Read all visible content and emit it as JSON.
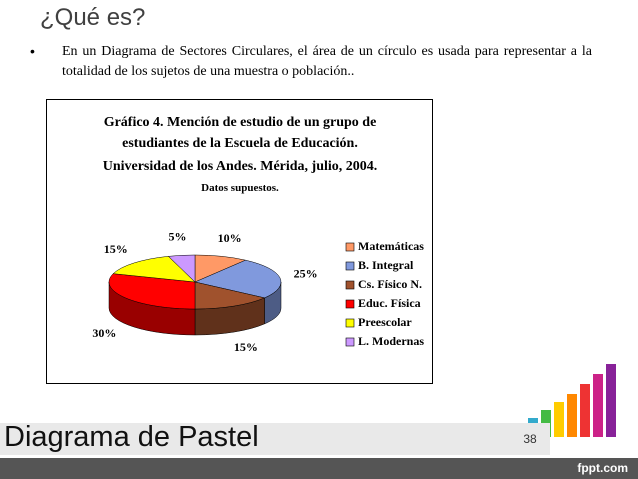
{
  "header": {
    "title": "¿Qué es?"
  },
  "bullet": "En un Diagrama de Sectores Circulares, el área de un círculo es usada para representar a la totalidad de los sujetos de una muestra o población..",
  "chart_data": {
    "type": "pie",
    "title": "Gráfico 4. Mención de estudio de un grupo de estudiantes de la Escuela de Educación.",
    "subtitle": "Universidad de los Andes. Mérida, julio, 2004.",
    "note": "Datos supuestos.",
    "categories": [
      "Matemáticas",
      "B. Integral",
      "Cs. Físico N.",
      "Educ. Física",
      "Preescolar",
      "L. Modernas"
    ],
    "values": [
      10,
      25,
      15,
      30,
      15,
      5
    ],
    "value_labels": [
      "10%",
      "25%",
      "15%",
      "30%",
      "15%",
      "5%"
    ],
    "colors": [
      "#ff9966",
      "#8099dd",
      "#a0522d",
      "#ff0000",
      "#ffff00",
      "#cc99ff"
    ],
    "legend": "right"
  },
  "footer": {
    "title": "Diagrama de Pastel",
    "page": "38",
    "brand": "fppt.com"
  }
}
